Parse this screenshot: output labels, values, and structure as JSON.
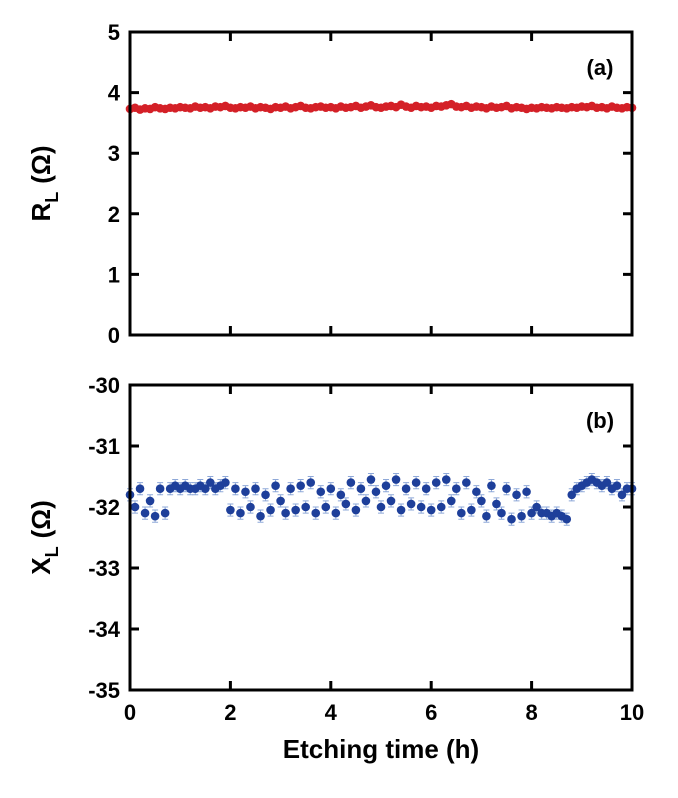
{
  "chart_data": [
    {
      "type": "scatter",
      "annotation": "(a)",
      "ylabel": {
        "text": "R",
        "subscript": "L",
        "unit": "(Ω)"
      },
      "color": "#d42027",
      "xtick_labels": false,
      "xlim": [
        0,
        10
      ],
      "xticks": [
        0,
        2,
        4,
        6,
        8,
        10
      ],
      "ylim": [
        0,
        5
      ],
      "yticks": [
        0,
        1,
        2,
        3,
        4,
        5
      ],
      "x": [
        0,
        0.1,
        0.2,
        0.3,
        0.4,
        0.5,
        0.6,
        0.7,
        0.8,
        0.9,
        1,
        1.1,
        1.2,
        1.3,
        1.4,
        1.5,
        1.6,
        1.7,
        1.8,
        1.9,
        2,
        2.1,
        2.2,
        2.3,
        2.4,
        2.5,
        2.6,
        2.7,
        2.8,
        2.9,
        3,
        3.1,
        3.2,
        3.3,
        3.4,
        3.5,
        3.6,
        3.7,
        3.8,
        3.9,
        4,
        4.1,
        4.2,
        4.3,
        4.4,
        4.5,
        4.6,
        4.7,
        4.8,
        4.9,
        5,
        5.1,
        5.2,
        5.3,
        5.4,
        5.5,
        5.6,
        5.7,
        5.8,
        5.9,
        6,
        6.1,
        6.2,
        6.3,
        6.4,
        6.5,
        6.6,
        6.7,
        6.8,
        6.9,
        7,
        7.1,
        7.2,
        7.3,
        7.4,
        7.5,
        7.6,
        7.7,
        7.8,
        7.9,
        8,
        8.1,
        8.2,
        8.3,
        8.4,
        8.5,
        8.6,
        8.7,
        8.8,
        8.9,
        9,
        9.1,
        9.2,
        9.3,
        9.4,
        9.5,
        9.6,
        9.7,
        9.8,
        9.9,
        10
      ],
      "values": [
        3.73,
        3.75,
        3.72,
        3.74,
        3.73,
        3.76,
        3.74,
        3.73,
        3.75,
        3.74,
        3.76,
        3.75,
        3.74,
        3.77,
        3.75,
        3.76,
        3.74,
        3.77,
        3.76,
        3.78,
        3.75,
        3.74,
        3.76,
        3.75,
        3.77,
        3.74,
        3.76,
        3.75,
        3.73,
        3.76,
        3.75,
        3.77,
        3.74,
        3.76,
        3.78,
        3.75,
        3.74,
        3.76,
        3.77,
        3.75,
        3.76,
        3.74,
        3.77,
        3.75,
        3.76,
        3.78,
        3.75,
        3.77,
        3.79,
        3.76,
        3.75,
        3.77,
        3.78,
        3.76,
        3.8,
        3.77,
        3.75,
        3.78,
        3.76,
        3.77,
        3.75,
        3.78,
        3.77,
        3.79,
        3.81,
        3.77,
        3.76,
        3.78,
        3.75,
        3.77,
        3.76,
        3.74,
        3.77,
        3.75,
        3.76,
        3.78,
        3.74,
        3.76,
        3.75,
        3.73,
        3.75,
        3.74,
        3.76,
        3.75,
        3.74,
        3.76,
        3.75,
        3.74,
        3.76,
        3.75,
        3.77,
        3.76,
        3.78,
        3.75,
        3.76,
        3.74,
        3.77,
        3.75,
        3.74,
        3.76,
        3.75
      ]
    },
    {
      "type": "scatter",
      "annotation": "(b)",
      "ylabel": {
        "text": "X",
        "subscript": "L",
        "unit": "(Ω)"
      },
      "xlabel": "Etching time (h)",
      "color": "#1e3f9a",
      "error_color": "#8ea8d8",
      "yerr": 0.1,
      "xtick_labels": true,
      "xlim": [
        0,
        10
      ],
      "xticks": [
        0,
        2,
        4,
        6,
        8,
        10
      ],
      "ylim": [
        -35,
        -30
      ],
      "yticks": [
        -35,
        -34,
        -33,
        -32,
        -31,
        -30
      ],
      "x": [
        0,
        0.1,
        0.2,
        0.3,
        0.4,
        0.5,
        0.6,
        0.7,
        0.8,
        0.9,
        1,
        1.1,
        1.2,
        1.3,
        1.4,
        1.5,
        1.6,
        1.7,
        1.8,
        1.9,
        2,
        2.1,
        2.2,
        2.3,
        2.4,
        2.5,
        2.6,
        2.7,
        2.8,
        2.9,
        3,
        3.1,
        3.2,
        3.3,
        3.4,
        3.5,
        3.6,
        3.7,
        3.8,
        3.9,
        4,
        4.1,
        4.2,
        4.3,
        4.4,
        4.5,
        4.6,
        4.7,
        4.8,
        4.9,
        5,
        5.1,
        5.2,
        5.3,
        5.4,
        5.5,
        5.6,
        5.7,
        5.8,
        5.9,
        6,
        6.1,
        6.2,
        6.3,
        6.4,
        6.5,
        6.6,
        6.7,
        6.8,
        6.9,
        7,
        7.1,
        7.2,
        7.3,
        7.4,
        7.5,
        7.6,
        7.7,
        7.8,
        7.9,
        8,
        8.1,
        8.2,
        8.3,
        8.4,
        8.5,
        8.6,
        8.7,
        8.8,
        8.9,
        9,
        9.1,
        9.2,
        9.3,
        9.4,
        9.5,
        9.6,
        9.7,
        9.8,
        9.9,
        10
      ],
      "values": [
        -31.8,
        -32.0,
        -31.7,
        -32.1,
        -31.9,
        -32.15,
        -31.7,
        -32.1,
        -31.7,
        -31.65,
        -31.7,
        -31.65,
        -31.7,
        -31.7,
        -31.65,
        -31.7,
        -31.6,
        -31.7,
        -31.65,
        -31.6,
        -32.05,
        -31.7,
        -32.1,
        -31.75,
        -32.0,
        -31.7,
        -32.15,
        -31.8,
        -32.05,
        -31.65,
        -31.9,
        -32.1,
        -31.7,
        -32.05,
        -31.65,
        -32.0,
        -31.6,
        -32.1,
        -31.75,
        -32.0,
        -31.7,
        -32.1,
        -31.8,
        -31.95,
        -31.6,
        -32.05,
        -31.7,
        -31.9,
        -31.55,
        -31.75,
        -32.0,
        -31.65,
        -31.9,
        -31.55,
        -32.05,
        -31.7,
        -31.95,
        -31.6,
        -32.0,
        -31.7,
        -32.05,
        -31.6,
        -32.0,
        -31.55,
        -31.9,
        -31.7,
        -32.1,
        -31.6,
        -32.05,
        -31.75,
        -31.9,
        -32.15,
        -31.65,
        -31.95,
        -32.1,
        -31.7,
        -32.2,
        -31.8,
        -32.15,
        -31.75,
        -32.1,
        -32.0,
        -32.1,
        -32.1,
        -32.15,
        -32.1,
        -32.15,
        -32.2,
        -31.8,
        -31.7,
        -31.65,
        -31.6,
        -31.55,
        -31.6,
        -31.65,
        -31.6,
        -31.7,
        -31.65,
        -31.8,
        -31.7,
        -31.7
      ]
    }
  ]
}
